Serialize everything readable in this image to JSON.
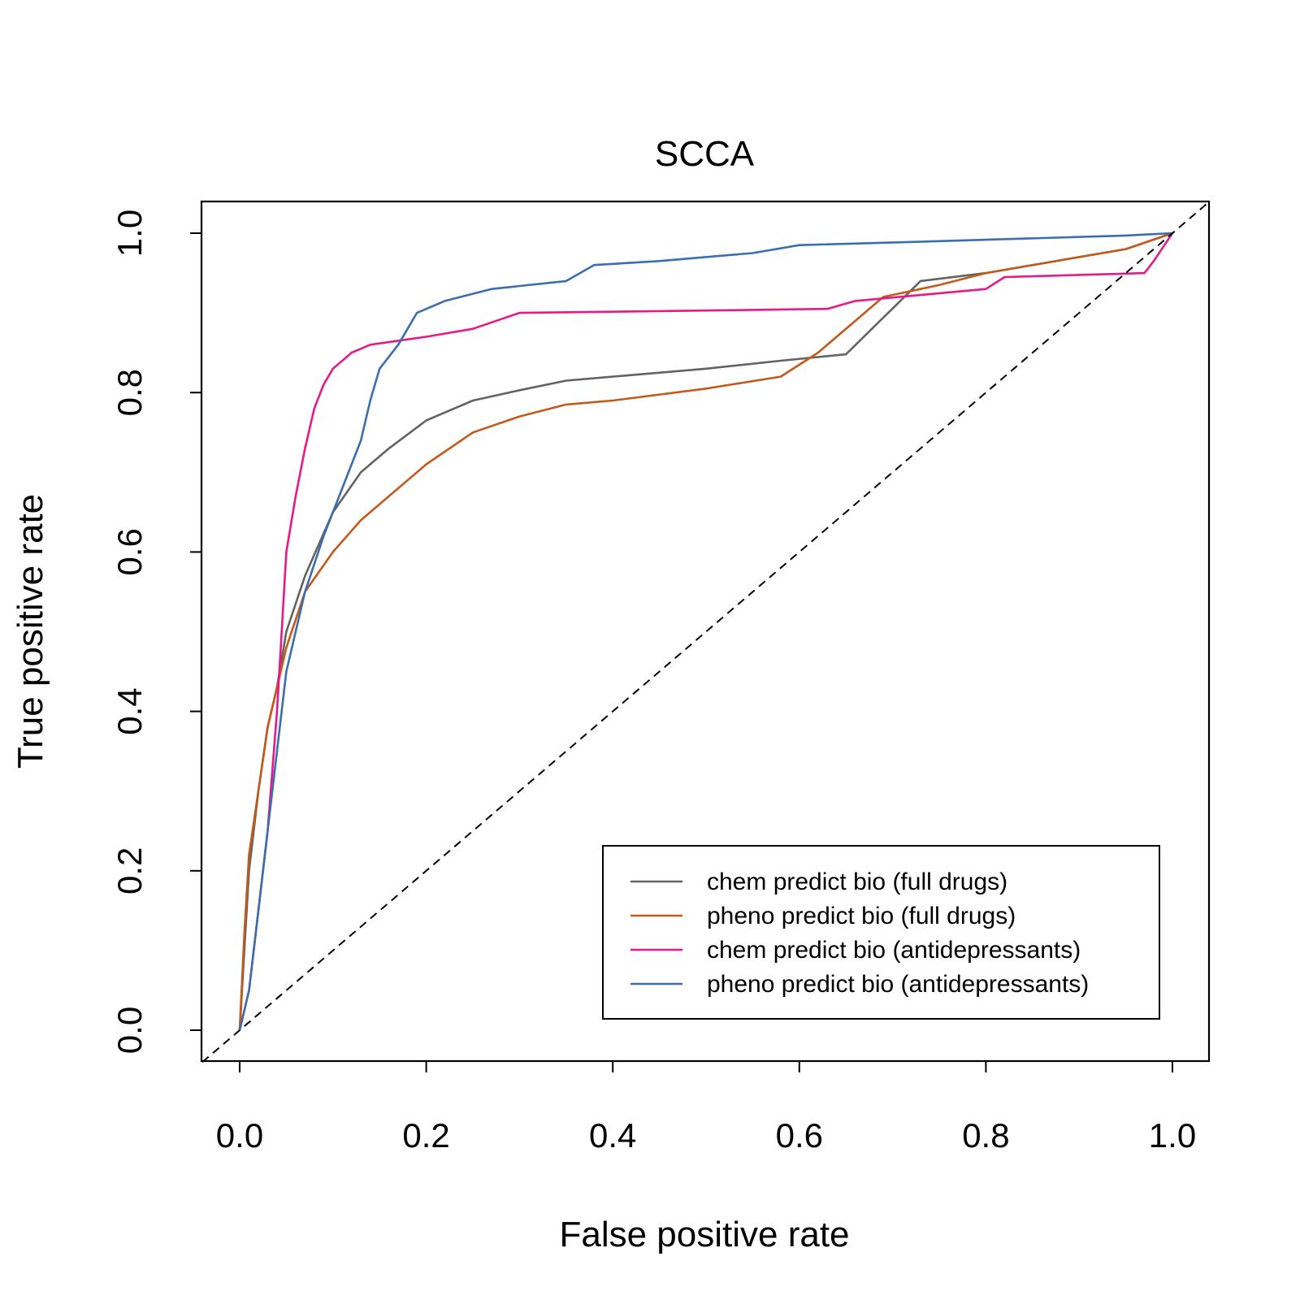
{
  "chart_data": {
    "type": "line",
    "title": "SCCA",
    "xlabel": "False positive rate",
    "ylabel": "True positive rate",
    "xlim": [
      0,
      1
    ],
    "ylim": [
      0,
      1
    ],
    "x_ticks": [
      "0.0",
      "0.2",
      "0.4",
      "0.6",
      "0.8",
      "1.0"
    ],
    "y_ticks": [
      "0.0",
      "0.2",
      "0.4",
      "0.6",
      "0.8",
      "1.0"
    ],
    "legend_position": "bottom-right",
    "reference_line": {
      "style": "dashed",
      "color": "#000000",
      "points": [
        [
          0,
          0
        ],
        [
          1,
          1
        ]
      ]
    },
    "series": [
      {
        "name": "chem predict bio (full drugs)",
        "color": "#636363",
        "points": [
          [
            0,
            0
          ],
          [
            0.005,
            0.1
          ],
          [
            0.01,
            0.2
          ],
          [
            0.02,
            0.3
          ],
          [
            0.03,
            0.38
          ],
          [
            0.04,
            0.43
          ],
          [
            0.05,
            0.5
          ],
          [
            0.07,
            0.57
          ],
          [
            0.1,
            0.65
          ],
          [
            0.13,
            0.7
          ],
          [
            0.16,
            0.73
          ],
          [
            0.2,
            0.765
          ],
          [
            0.25,
            0.79
          ],
          [
            0.3,
            0.803
          ],
          [
            0.35,
            0.815
          ],
          [
            0.4,
            0.82
          ],
          [
            0.5,
            0.83
          ],
          [
            0.58,
            0.84
          ],
          [
            0.65,
            0.848
          ],
          [
            0.73,
            0.94
          ],
          [
            0.8,
            0.95
          ],
          [
            0.9,
            0.97
          ],
          [
            0.95,
            0.98
          ],
          [
            1,
            1
          ]
        ]
      },
      {
        "name": "pheno predict bio (full drugs)",
        "color": "#c25a1c",
        "points": [
          [
            0,
            0
          ],
          [
            0.005,
            0.12
          ],
          [
            0.01,
            0.22
          ],
          [
            0.02,
            0.3
          ],
          [
            0.03,
            0.38
          ],
          [
            0.04,
            0.43
          ],
          [
            0.05,
            0.48
          ],
          [
            0.07,
            0.55
          ],
          [
            0.1,
            0.6
          ],
          [
            0.13,
            0.64
          ],
          [
            0.16,
            0.67
          ],
          [
            0.2,
            0.71
          ],
          [
            0.25,
            0.75
          ],
          [
            0.3,
            0.77
          ],
          [
            0.35,
            0.785
          ],
          [
            0.4,
            0.79
          ],
          [
            0.5,
            0.805
          ],
          [
            0.58,
            0.82
          ],
          [
            0.62,
            0.85
          ],
          [
            0.69,
            0.92
          ],
          [
            0.75,
            0.935
          ],
          [
            0.8,
            0.95
          ],
          [
            0.9,
            0.97
          ],
          [
            0.95,
            0.98
          ],
          [
            1,
            1
          ]
        ]
      },
      {
        "name": "chem predict bio (antidepressants)",
        "color": "#e7198a",
        "points": [
          [
            0,
            0
          ],
          [
            0.01,
            0.05
          ],
          [
            0.02,
            0.15
          ],
          [
            0.03,
            0.25
          ],
          [
            0.04,
            0.4
          ],
          [
            0.045,
            0.5
          ],
          [
            0.05,
            0.6
          ],
          [
            0.06,
            0.67
          ],
          [
            0.07,
            0.73
          ],
          [
            0.08,
            0.78
          ],
          [
            0.09,
            0.81
          ],
          [
            0.1,
            0.83
          ],
          [
            0.12,
            0.85
          ],
          [
            0.14,
            0.86
          ],
          [
            0.2,
            0.87
          ],
          [
            0.25,
            0.88
          ],
          [
            0.3,
            0.9
          ],
          [
            0.5,
            0.903
          ],
          [
            0.63,
            0.905
          ],
          [
            0.66,
            0.915
          ],
          [
            0.8,
            0.93
          ],
          [
            0.82,
            0.945
          ],
          [
            0.97,
            0.95
          ],
          [
            0.98,
            0.965
          ],
          [
            1,
            1
          ]
        ]
      },
      {
        "name": "pheno predict bio (antidepressants)",
        "color": "#3a6ead",
        "points": [
          [
            0,
            0
          ],
          [
            0.01,
            0.05
          ],
          [
            0.02,
            0.15
          ],
          [
            0.03,
            0.25
          ],
          [
            0.04,
            0.35
          ],
          [
            0.05,
            0.45
          ],
          [
            0.07,
            0.55
          ],
          [
            0.09,
            0.62
          ],
          [
            0.11,
            0.68
          ],
          [
            0.13,
            0.74
          ],
          [
            0.14,
            0.79
          ],
          [
            0.15,
            0.83
          ],
          [
            0.17,
            0.86
          ],
          [
            0.19,
            0.9
          ],
          [
            0.22,
            0.915
          ],
          [
            0.27,
            0.93
          ],
          [
            0.35,
            0.94
          ],
          [
            0.38,
            0.96
          ],
          [
            0.45,
            0.965
          ],
          [
            0.55,
            0.975
          ],
          [
            0.6,
            0.985
          ],
          [
            0.75,
            0.99
          ],
          [
            0.95,
            0.997
          ],
          [
            1,
            1
          ]
        ]
      }
    ]
  }
}
